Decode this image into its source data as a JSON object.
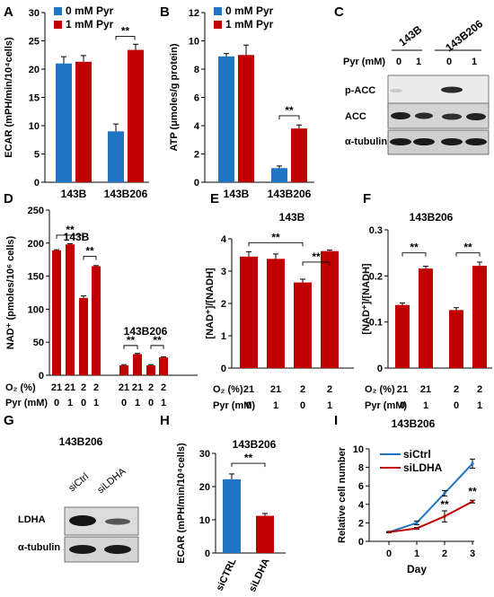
{
  "panels": {
    "A": {
      "letter": "A"
    },
    "B": {
      "letter": "B"
    },
    "C": {
      "letter": "C"
    },
    "D": {
      "letter": "D"
    },
    "E": {
      "letter": "E"
    },
    "F": {
      "letter": "F"
    },
    "G": {
      "letter": "G"
    },
    "H": {
      "letter": "H"
    },
    "I": {
      "letter": "I"
    }
  },
  "colors": {
    "blue": "#1f74c4",
    "red": "#c00000",
    "black": "#000000"
  },
  "blots": {
    "C": {
      "cell_lines": [
        "143B",
        "143B206"
      ],
      "pyr_label": "Pyr (mM)",
      "pyr_values": [
        "0",
        "1",
        "0",
        "1"
      ],
      "rows": [
        "p-ACC",
        "ACC",
        "α-tubulin"
      ]
    },
    "G": {
      "title": "143B206",
      "lanes": [
        "siCtrl",
        "siLDHA"
      ],
      "rows": [
        "LDHA",
        "α-tubulin"
      ]
    }
  },
  "chart_data": [
    {
      "id": "A",
      "type": "bar",
      "categories": [
        "143B",
        "143B206"
      ],
      "series": [
        {
          "name": "0 mM Pyr",
          "values": [
            21.0,
            9.0
          ],
          "errors": [
            1.2,
            1.3
          ],
          "color": "#1f74c4"
        },
        {
          "name": "1 mM Pyr",
          "values": [
            21.3,
            23.4
          ],
          "errors": [
            1.1,
            1.0
          ],
          "color": "#c00000"
        }
      ],
      "ylabel": "ECAR (mPH/min/10⁴cells)",
      "ylim": [
        0,
        30
      ],
      "yticks": [
        "0",
        "5",
        "10",
        "15",
        "20",
        "25",
        "30"
      ],
      "significance": [
        {
          "label": "**"
        }
      ]
    },
    {
      "id": "B",
      "type": "bar",
      "categories": [
        "143B",
        "143B206"
      ],
      "series": [
        {
          "name": "0 mM Pyr",
          "values": [
            8.9,
            1.0
          ],
          "errors": [
            0.2,
            0.15
          ],
          "color": "#1f74c4"
        },
        {
          "name": "1 mM Pyr",
          "values": [
            9.0,
            3.8
          ],
          "errors": [
            0.7,
            0.25
          ],
          "color": "#c00000"
        }
      ],
      "ylabel": "ATP (μmoles/g protein)",
      "ylim": [
        0,
        12
      ],
      "yticks": [
        "0",
        "2",
        "4",
        "6",
        "8",
        "10",
        "12"
      ],
      "significance": [
        {
          "label": "**"
        }
      ]
    },
    {
      "id": "D",
      "type": "bar",
      "groups": [
        "143B",
        "143B206"
      ],
      "values": [
        189,
        198,
        117,
        165,
        15,
        32,
        15,
        27
      ],
      "errors": [
        1,
        1,
        3,
        1,
        1,
        1,
        1,
        1
      ],
      "color": "#c00000",
      "ylabel": "NAD⁺ (pmoles/10⁶ cells)",
      "ylim": [
        0,
        250
      ],
      "yticks": [
        "0",
        "50",
        "100",
        "150",
        "200",
        "250"
      ],
      "o2_label": "O₂ (%)",
      "pyr_label": "Pyr (mM)",
      "o2": [
        "21",
        "21",
        "2",
        "2",
        "21",
        "21",
        "2",
        "2"
      ],
      "pyr": [
        "0",
        "1",
        "0",
        "1",
        "0",
        "1",
        "0",
        "1"
      ],
      "significance": [
        "**",
        "**",
        "**",
        "**"
      ]
    },
    {
      "id": "E",
      "type": "bar",
      "title": "143B",
      "values": [
        3.45,
        3.38,
        2.65,
        3.62
      ],
      "errors": [
        0.15,
        0.15,
        0.1,
        0.03
      ],
      "color": "#c00000",
      "ylabel": "[NAD⁺]/[NADH]",
      "ylim": [
        0,
        4
      ],
      "yticks": [
        "0",
        "1",
        "2",
        "3",
        "4"
      ],
      "o2_label": "O₂ (%)",
      "pyr_label": "Pyr (mM)",
      "o2": [
        "21",
        "21",
        "2",
        "2"
      ],
      "pyr": [
        "0",
        "1",
        "0",
        "1"
      ],
      "significance": [
        "**",
        "**"
      ]
    },
    {
      "id": "F",
      "type": "bar",
      "title": "143B206",
      "values": [
        0.137,
        0.216,
        0.126,
        0.222
      ],
      "errors": [
        0.004,
        0.005,
        0.005,
        0.008
      ],
      "color": "#c00000",
      "ylabel": "[NAD⁺]/[NADH]",
      "ylim": [
        0,
        0.3
      ],
      "yticks": [
        "0",
        "0.1",
        "0.2",
        "0.3"
      ],
      "o2_label": "O₂ (%)",
      "pyr_label": "Pyr (mM)",
      "o2": [
        "21",
        "21",
        "2",
        "2"
      ],
      "pyr": [
        "0",
        "1",
        "0",
        "1"
      ],
      "significance": [
        "**",
        "**"
      ]
    },
    {
      "id": "H",
      "type": "bar",
      "title": "143B206",
      "categories": [
        "siCTRL",
        "siLDHA"
      ],
      "values": [
        22.2,
        11.2
      ],
      "errors": [
        1.6,
        0.7
      ],
      "colors": [
        "#1f74c4",
        "#c00000"
      ],
      "ylabel": "ECAR (mPH/min/10⁴cells)",
      "ylim": [
        0,
        30
      ],
      "yticks": [
        "0",
        "10",
        "20",
        "30"
      ],
      "significance": [
        "**"
      ]
    },
    {
      "id": "I",
      "type": "line",
      "title": "143B206",
      "x": [
        0,
        1,
        2,
        3
      ],
      "xticks": [
        "0",
        "1",
        "2",
        "3"
      ],
      "series": [
        {
          "name": "siCtrl",
          "values": [
            1.0,
            2.0,
            5.2,
            8.4
          ],
          "errors": [
            0.05,
            0.2,
            0.3,
            0.5
          ],
          "color": "#1f74c4"
        },
        {
          "name": "siLDHA",
          "values": [
            1.0,
            1.4,
            2.7,
            4.3
          ],
          "errors": [
            0.05,
            0.1,
            0.6,
            0.15
          ],
          "color": "#c00000"
        }
      ],
      "xlabel": "Day",
      "ylabel": "Relative cell number",
      "ylim": [
        0,
        10
      ],
      "yticks": [
        "0",
        "2",
        "4",
        "6",
        "8",
        "10"
      ],
      "significance": [
        "**",
        "**"
      ]
    }
  ]
}
